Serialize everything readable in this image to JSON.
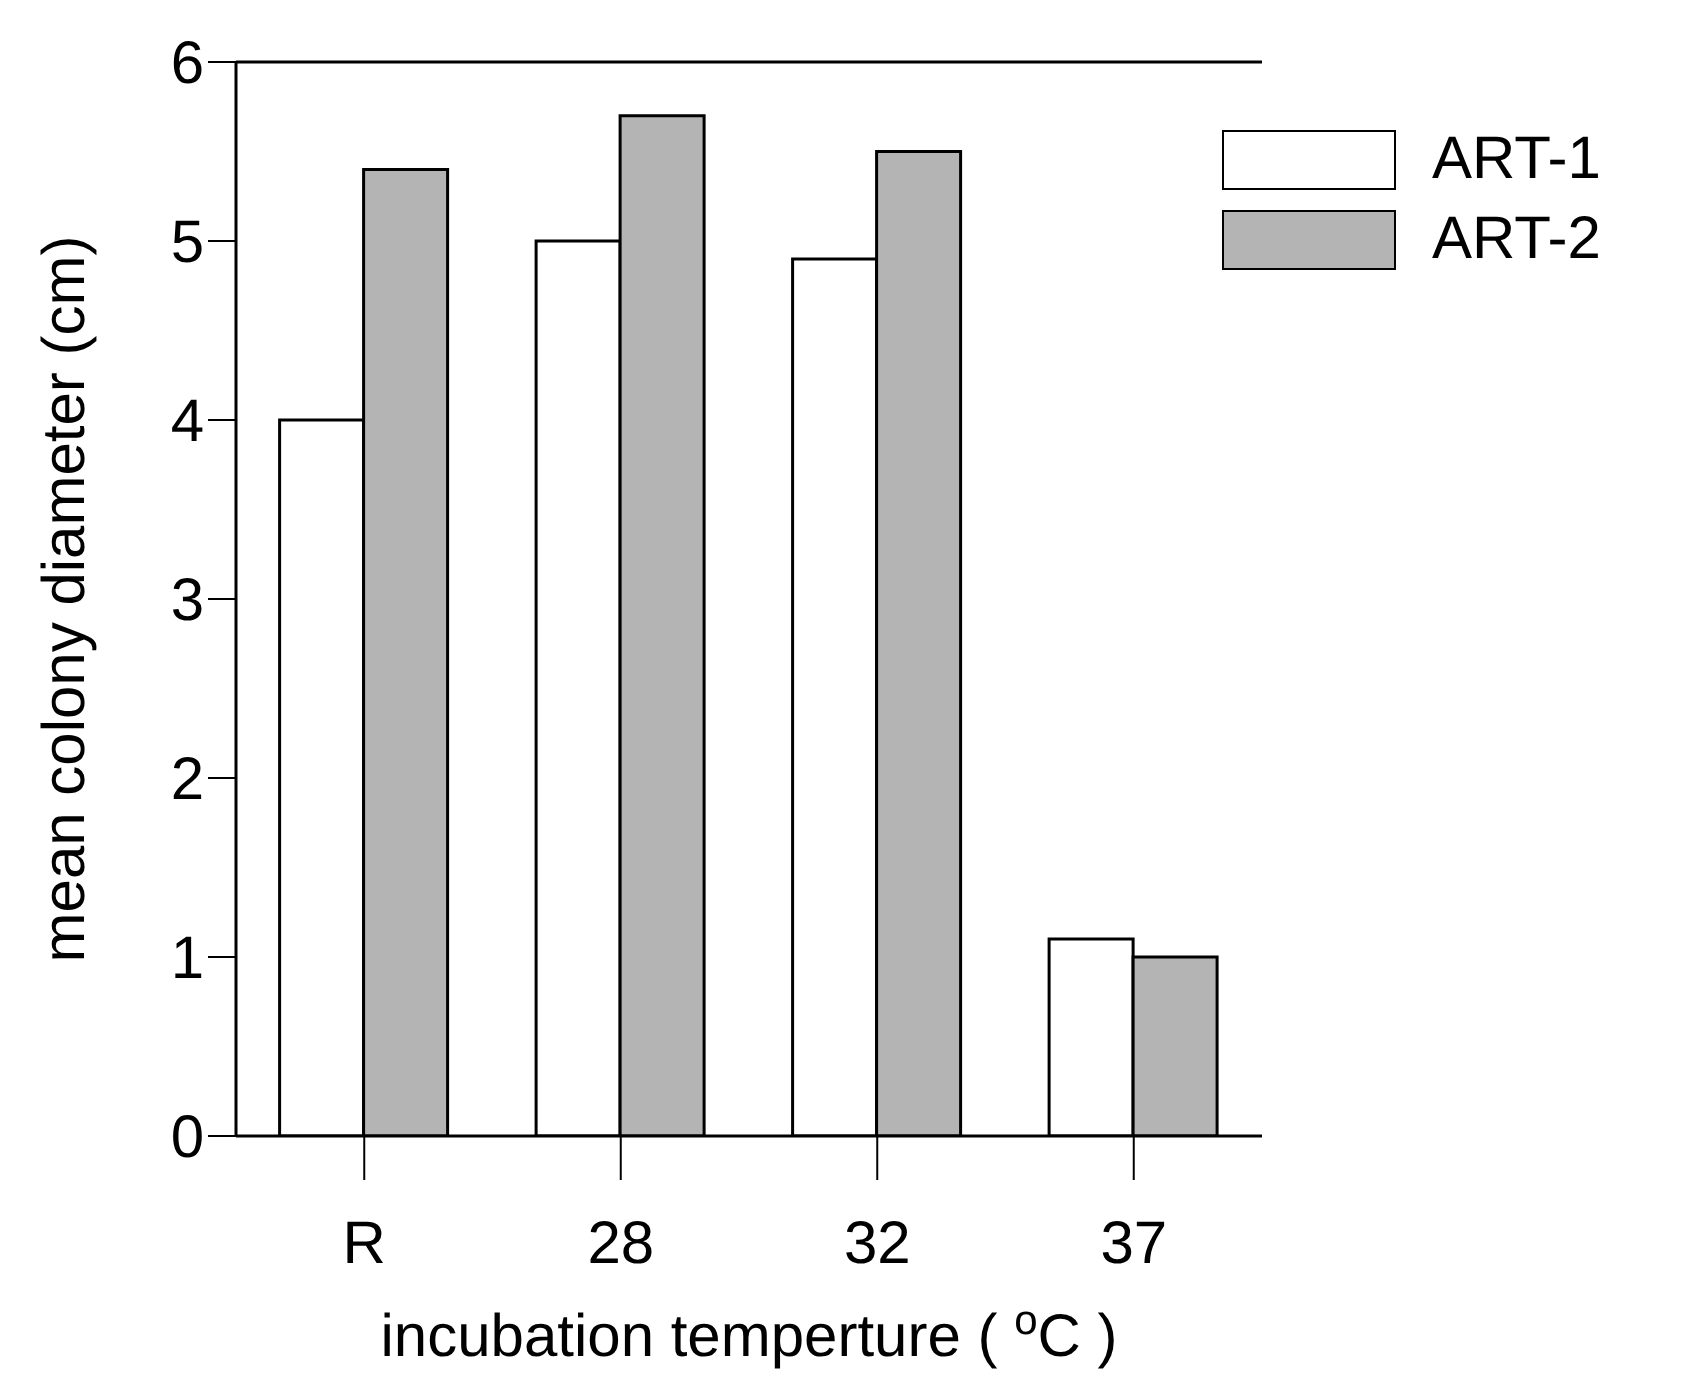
{
  "chart_data": {
    "type": "bar",
    "xlabel": "incubation temperture ( $^{o}$C )",
    "ylabel": "mean colony diameter (cm)",
    "categories": [
      "R",
      "28",
      "32",
      "37"
    ],
    "series": [
      {
        "name": "ART-1",
        "color": "#ffffff",
        "values": [
          4.0,
          5.0,
          4.9,
          1.1
        ]
      },
      {
        "name": "ART-2",
        "color": "#b4b4b4",
        "values": [
          5.4,
          5.7,
          5.5,
          1.0
        ]
      }
    ],
    "ylim": [
      0,
      6
    ],
    "yticks": [
      0,
      1,
      2,
      3,
      4,
      5,
      6
    ],
    "legend": "top right",
    "grid": false
  }
}
